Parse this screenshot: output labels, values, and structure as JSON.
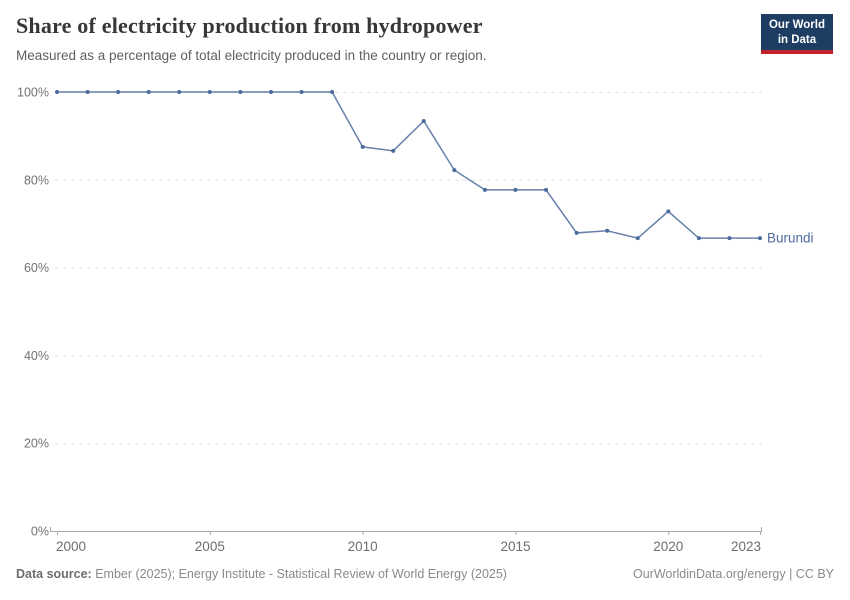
{
  "header": {
    "title": "Share of electricity production from hydropower",
    "subtitle": "Measured as a percentage of total electricity produced in the country or region.",
    "logo_line1": "Our World",
    "logo_line2": "in Data"
  },
  "chart_data": {
    "type": "line",
    "title": "Share of electricity production from hydropower",
    "subtitle": "Measured as a percentage of total electricity produced in the country or region.",
    "xlabel": "",
    "ylabel": "",
    "x": [
      2000,
      2001,
      2002,
      2003,
      2004,
      2005,
      2006,
      2007,
      2008,
      2009,
      2010,
      2011,
      2012,
      2013,
      2014,
      2015,
      2016,
      2017,
      2018,
      2019,
      2020,
      2021,
      2022,
      2023
    ],
    "series": [
      {
        "name": "Burundi",
        "color": "#4c6a9c",
        "values": [
          100,
          100,
          100,
          100,
          100,
          100,
          100,
          100,
          100,
          100,
          87.5,
          86.6,
          93.4,
          82.2,
          77.7,
          77.7,
          77.7,
          67.9,
          68.4,
          66.7,
          72.8,
          66.7,
          66.7,
          66.7
        ]
      }
    ],
    "ylim": [
      0,
      100
    ],
    "yticks": [
      0,
      20,
      40,
      60,
      80,
      100
    ],
    "ytick_suffix": "%",
    "xticks": [
      2000,
      2005,
      2010,
      2015,
      2020,
      2023
    ],
    "grid": "horizontal-dashed",
    "legend_position": "label-at-line-end"
  },
  "footer": {
    "source_label": "Data source:",
    "source_text": "Ember (2025); Energy Institute - Statistical Review of World Energy (2025)",
    "license_text": "OurWorldinData.org/energy | CC BY"
  },
  "colors": {
    "accent_line": "#4c6a9c",
    "logo_bg": "#1d3d63",
    "logo_red": "#c0232c",
    "grid": "#e0e0e0",
    "axis": "#a8a8a8",
    "ytick_text": "#737373",
    "xtick_text": "#6e6e6e"
  }
}
